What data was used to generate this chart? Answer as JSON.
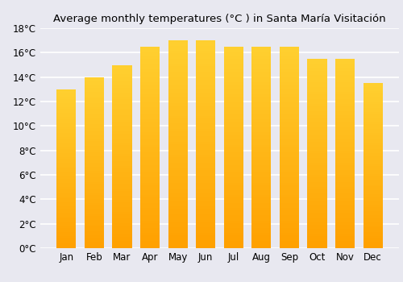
{
  "title": "Average monthly temperatures (°C ) in Santa María Visitación",
  "months": [
    "Jan",
    "Feb",
    "Mar",
    "Apr",
    "May",
    "Jun",
    "Jul",
    "Aug",
    "Sep",
    "Oct",
    "Nov",
    "Dec"
  ],
  "values": [
    13.0,
    14.0,
    15.0,
    16.5,
    17.0,
    17.0,
    16.5,
    16.5,
    16.5,
    15.5,
    15.5,
    13.5
  ],
  "bar_color_bottom": "#FFA500",
  "bar_color_top": "#FFD700",
  "ylim": [
    0,
    18
  ],
  "ytick_step": 2,
  "background_color": "#e8e8f0",
  "grid_color": "#ffffff",
  "title_fontsize": 9.5,
  "tick_fontsize": 8.5,
  "bar_width": 0.7
}
